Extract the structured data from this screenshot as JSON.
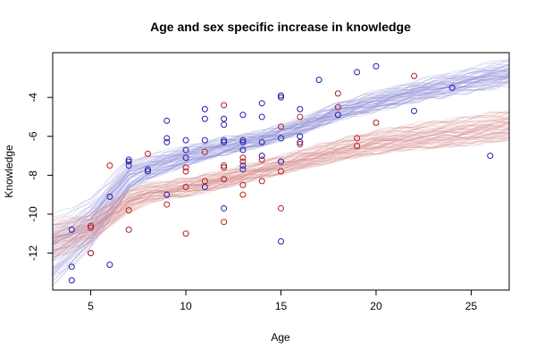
{
  "chart_data": {
    "type": "scatter",
    "title": "Age and sex specific increase in knowledge",
    "xlabel": "Age",
    "ylabel": "Knowledge",
    "xlim": [
      3,
      27
    ],
    "ylim": [
      -13.9,
      -1.7
    ],
    "xticks": [
      5,
      10,
      15,
      20,
      25
    ],
    "yticks": [
      -12,
      -10,
      -8,
      -6,
      -4
    ],
    "grid": false,
    "legend": "none",
    "colors": {
      "blue": "#1f1fa8",
      "red": "#b02020",
      "blue_band": "#8c8cd8",
      "red_band": "#d88c8c"
    },
    "series": [
      {
        "color": "blue",
        "points": [
          [
            4,
            -10.8
          ],
          [
            4,
            -12.7
          ],
          [
            4,
            -13.4
          ],
          [
            5,
            -12.0
          ],
          [
            6,
            -12.6
          ],
          [
            6,
            -9.1
          ],
          [
            7,
            -7.2
          ],
          [
            7,
            -7.3
          ],
          [
            7,
            -7.5
          ],
          [
            8,
            -7.7
          ],
          [
            8,
            -7.8
          ],
          [
            9,
            -5.2
          ],
          [
            9,
            -6.1
          ],
          [
            9,
            -6.3
          ],
          [
            9,
            -9.0
          ],
          [
            10,
            -6.2
          ],
          [
            10,
            -6.7
          ],
          [
            10,
            -7.1
          ],
          [
            11,
            -4.6
          ],
          [
            11,
            -5.1
          ],
          [
            11,
            -6.2
          ],
          [
            11,
            -8.6
          ],
          [
            12,
            -5.1
          ],
          [
            12,
            -5.4
          ],
          [
            12,
            -6.2
          ],
          [
            12,
            -6.3
          ],
          [
            12,
            -9.7
          ],
          [
            13,
            -4.9
          ],
          [
            13,
            -6.2
          ],
          [
            13,
            -6.3
          ],
          [
            13,
            -6.7
          ],
          [
            13,
            -7.5
          ],
          [
            13,
            -7.7
          ],
          [
            14,
            -4.3
          ],
          [
            14,
            -5.0
          ],
          [
            14,
            -6.3
          ],
          [
            14,
            -7.0
          ],
          [
            15,
            -3.9
          ],
          [
            15,
            -4.0
          ],
          [
            15,
            -6.1
          ],
          [
            15,
            -7.3
          ],
          [
            15,
            -11.4
          ],
          [
            16,
            -4.6
          ],
          [
            16,
            -6.0
          ],
          [
            16,
            -6.3
          ],
          [
            17,
            -3.1
          ],
          [
            18,
            -4.9
          ],
          [
            19,
            -2.7
          ],
          [
            20,
            -2.4
          ],
          [
            22,
            -4.7
          ],
          [
            24,
            -3.5
          ],
          [
            26,
            -7.0
          ]
        ],
        "band": {
          "x": [
            3,
            4,
            5,
            6,
            7,
            8,
            10,
            12,
            14,
            16,
            18,
            20,
            22,
            24,
            27
          ],
          "center": [
            -11.8,
            -11.2,
            -10.4,
            -9.2,
            -8.0,
            -7.6,
            -7.0,
            -6.5,
            -6.1,
            -5.5,
            -4.7,
            -4.2,
            -3.7,
            -3.3,
            -2.7
          ],
          "spread": [
            1.6,
            1.4,
            1.2,
            1.0,
            0.8,
            0.6,
            0.5,
            0.45,
            0.4,
            0.4,
            0.45,
            0.5,
            0.5,
            0.55,
            0.6
          ]
        }
      },
      {
        "color": "red",
        "points": [
          [
            5,
            -10.6
          ],
          [
            5,
            -10.7
          ],
          [
            5,
            -12.0
          ],
          [
            6,
            -7.5
          ],
          [
            7,
            -9.8
          ],
          [
            7,
            -10.8
          ],
          [
            8,
            -6.9
          ],
          [
            9,
            -9.5
          ],
          [
            10,
            -7.6
          ],
          [
            10,
            -7.8
          ],
          [
            10,
            -8.6
          ],
          [
            10,
            -11.0
          ],
          [
            11,
            -6.8
          ],
          [
            11,
            -8.3
          ],
          [
            12,
            -4.4
          ],
          [
            12,
            -7.5
          ],
          [
            12,
            -7.6
          ],
          [
            12,
            -8.2
          ],
          [
            12,
            -10.4
          ],
          [
            13,
            -7.1
          ],
          [
            13,
            -7.3
          ],
          [
            13,
            -8.5
          ],
          [
            13,
            -9.0
          ],
          [
            14,
            -7.2
          ],
          [
            14,
            -8.3
          ],
          [
            15,
            -5.5
          ],
          [
            15,
            -7.8
          ],
          [
            15,
            -9.7
          ],
          [
            16,
            -5.0
          ],
          [
            16,
            -6.4
          ],
          [
            18,
            -3.8
          ],
          [
            18,
            -4.5
          ],
          [
            19,
            -6.1
          ],
          [
            19,
            -6.5
          ],
          [
            20,
            -5.3
          ],
          [
            22,
            -2.9
          ]
        ],
        "band": {
          "x": [
            3,
            4,
            5,
            6,
            7,
            8,
            10,
            12,
            14,
            16,
            18,
            20,
            22,
            24,
            27
          ],
          "center": [
            -11.3,
            -11.0,
            -10.7,
            -10.0,
            -9.3,
            -8.9,
            -8.6,
            -8.2,
            -7.7,
            -7.2,
            -6.7,
            -6.3,
            -6.0,
            -5.8,
            -5.4
          ],
          "spread": [
            0.9,
            0.8,
            0.7,
            0.6,
            0.55,
            0.5,
            0.45,
            0.45,
            0.45,
            0.5,
            0.55,
            0.6,
            0.65,
            0.7,
            0.75
          ]
        }
      }
    ]
  }
}
